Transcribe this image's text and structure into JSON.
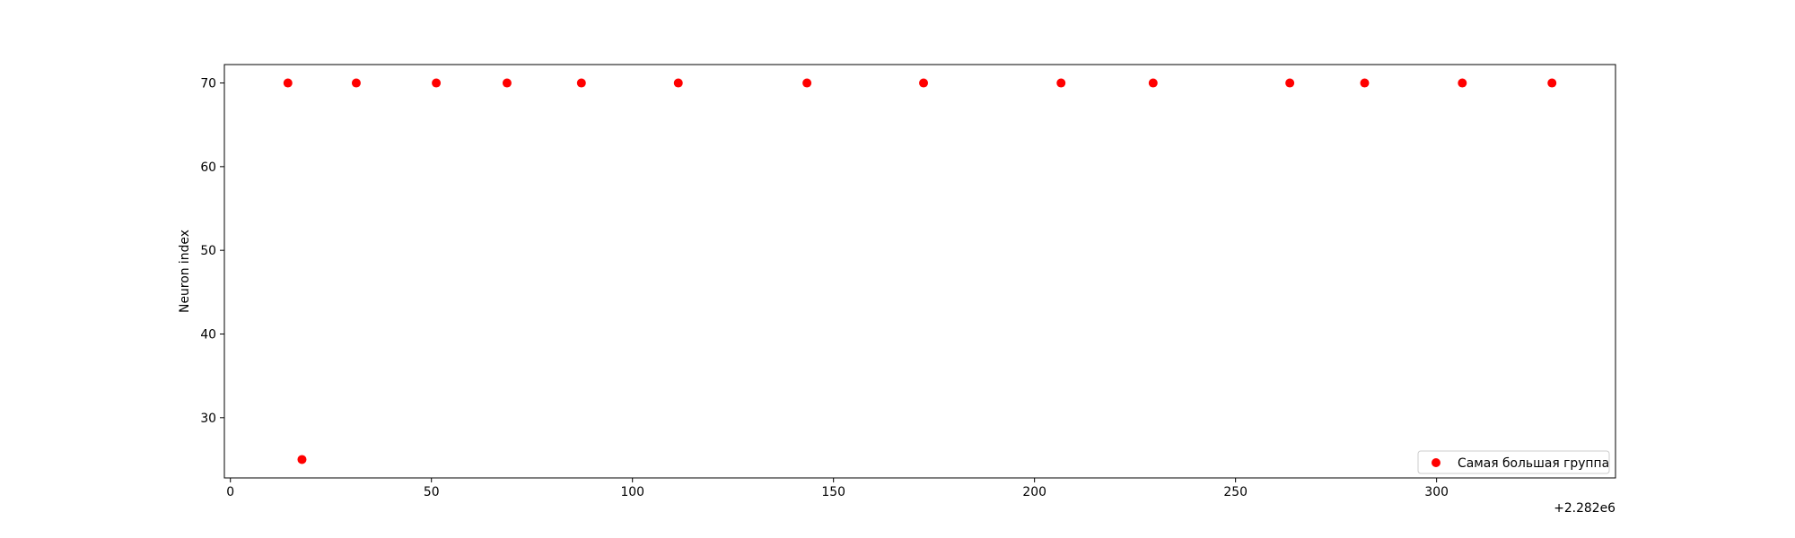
{
  "chart_data": {
    "type": "scatter",
    "title": "",
    "xlabel": "",
    "ylabel": "Neuron index",
    "x_offset_label": "+2.282e6",
    "xlim": [
      -1.5,
      344.5
    ],
    "ylim": [
      22.8,
      72.2
    ],
    "x_ticks": [
      0,
      50,
      100,
      150,
      200,
      250,
      300
    ],
    "y_ticks": [
      30,
      40,
      50,
      60,
      70
    ],
    "grid": false,
    "legend_position": "lower right",
    "series": [
      {
        "name": "Самая большая группа",
        "color": "#ff0000",
        "marker": "circle",
        "points": [
          {
            "x": 14.3,
            "y": 70
          },
          {
            "x": 17.8,
            "y": 25
          },
          {
            "x": 31.3,
            "y": 70
          },
          {
            "x": 51.2,
            "y": 70
          },
          {
            "x": 68.8,
            "y": 70
          },
          {
            "x": 87.3,
            "y": 70
          },
          {
            "x": 111.4,
            "y": 70
          },
          {
            "x": 143.4,
            "y": 70
          },
          {
            "x": 172.4,
            "y": 70
          },
          {
            "x": 206.6,
            "y": 70
          },
          {
            "x": 229.5,
            "y": 70
          },
          {
            "x": 263.5,
            "y": 70
          },
          {
            "x": 282.1,
            "y": 70
          },
          {
            "x": 306.4,
            "y": 70
          },
          {
            "x": 328.7,
            "y": 70
          }
        ]
      }
    ]
  }
}
